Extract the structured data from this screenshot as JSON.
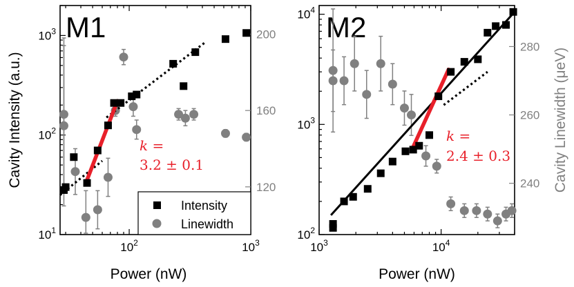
{
  "chart_data": [
    {
      "type": "scatter",
      "title": "M1",
      "xlabel": "Power (nW)",
      "ylabel": "Cavity Intensity (a.u.)",
      "xscale": "log",
      "yscale": "log",
      "xlim": [
        27,
        1000
      ],
      "ylim": [
        10,
        2000
      ],
      "y2lim": [
        95,
        215
      ],
      "xticks": [
        {
          "v": 100,
          "label": "10^2"
        },
        {
          "v": 1000,
          "label": "10^3"
        }
      ],
      "yticks": [
        {
          "v": 10,
          "label": "10^1"
        },
        {
          "v": 100,
          "label": "10^2"
        },
        {
          "v": 1000,
          "label": "10^3"
        }
      ],
      "y2ticks": [
        {
          "v": 120,
          "label": "120"
        },
        {
          "v": 160,
          "label": "160"
        },
        {
          "v": 200,
          "label": "200"
        }
      ],
      "intensity": {
        "x": [
          29,
          30,
          35,
          45,
          55,
          67,
          75,
          85,
          105,
          115,
          230,
          280,
          350,
          620,
          920
        ],
        "y": [
          28,
          30,
          60,
          33,
          70,
          125,
          210,
          210,
          245,
          255,
          520,
          310,
          680,
          920,
          1060
        ]
      },
      "linewidth": {
        "x": [
          29,
          29,
          36,
          44,
          55,
          67,
          77,
          90,
          108,
          115,
          255,
          290,
          340,
          620,
          920
        ],
        "y": [
          152,
          158,
          128,
          104,
          108,
          125,
          160,
          188,
          162,
          150,
          158,
          156,
          158,
          148,
          146
        ],
        "err": [
          42,
          40,
          12,
          14,
          10,
          10,
          3,
          4,
          5,
          5,
          3,
          4,
          3,
          2,
          2
        ]
      },
      "fits": [
        {
          "style": "dotted",
          "x": [
            27,
            60
          ],
          "y": [
            25,
            55
          ]
        },
        {
          "style": "dotted",
          "x": [
            65,
            420
          ],
          "y": [
            150,
            850
          ]
        },
        {
          "style": "solid-red",
          "x": [
            44,
            80
          ],
          "y": [
            33,
            220
          ]
        }
      ],
      "annotation": {
        "line1": "k =",
        "line2": "3.2 ± 0.1"
      },
      "legend": {
        "position": "bottom-right",
        "entries": [
          "Intensity",
          "Linewidth"
        ]
      }
    },
    {
      "type": "scatter",
      "title": "M2",
      "xlabel": "Power (nW)",
      "ylabel": "Cavity Linewidth (μeV)",
      "xscale": "log",
      "yscale": "log",
      "xlim": [
        1000,
        40000
      ],
      "ylim": [
        100,
        12000
      ],
      "y2lim": [
        225,
        292
      ],
      "xticks": [
        {
          "v": 1000,
          "label": "10^3"
        },
        {
          "v": 10000,
          "label": "10^4"
        }
      ],
      "yticks": [
        {
          "v": 100,
          "label": "10^2"
        },
        {
          "v": 1000,
          "label": "10^3"
        },
        {
          "v": 10000,
          "label": "10^4"
        }
      ],
      "y2ticks": [
        {
          "v": 240,
          "label": "240"
        },
        {
          "v": 260,
          "label": "260"
        },
        {
          "v": 280,
          "label": "280"
        }
      ],
      "intensity": {
        "x": [
          1300,
          1300,
          1600,
          1900,
          2500,
          3200,
          4000,
          5100,
          5900,
          6600,
          8000,
          9500,
          12000,
          15500,
          20000,
          24000,
          28000,
          34000,
          39000
        ],
        "y": [
          125,
          115,
          200,
          220,
          260,
          360,
          460,
          570,
          590,
          640,
          800,
          1800,
          3000,
          3700,
          3900,
          6800,
          7800,
          8000,
          10500
        ]
      },
      "linewidth": {
        "x": [
          1300,
          1300,
          1600,
          1950,
          2450,
          3200,
          4000,
          5000,
          5700,
          7500,
          9200,
          12000,
          15500,
          19500,
          24000,
          29000,
          34000,
          38000
        ],
        "y": [
          270,
          273,
          270,
          275,
          266,
          275,
          269,
          262,
          260,
          248,
          245,
          234,
          232,
          232,
          231,
          229,
          231,
          232
        ],
        "err": [
          9,
          18,
          7,
          8,
          7,
          8,
          6,
          5,
          6,
          3,
          2,
          2,
          2,
          2,
          2,
          2,
          2,
          2
        ]
      },
      "fits": [
        {
          "style": "solid-black",
          "x": [
            1250,
            40000
          ],
          "y": [
            150,
            10500
          ]
        },
        {
          "style": "dotted",
          "x": [
            10500,
            24000
          ],
          "y": [
            1500,
            3000
          ]
        },
        {
          "style": "solid-red",
          "x": [
            5800,
            11500
          ],
          "y": [
            600,
            3150
          ]
        }
      ],
      "annotation": {
        "line1": "k =",
        "line2": "2.4 ± 0.3"
      }
    }
  ],
  "colors": {
    "intensity": "#000000",
    "linewidth": "#808080",
    "fit": "#e8202a"
  }
}
